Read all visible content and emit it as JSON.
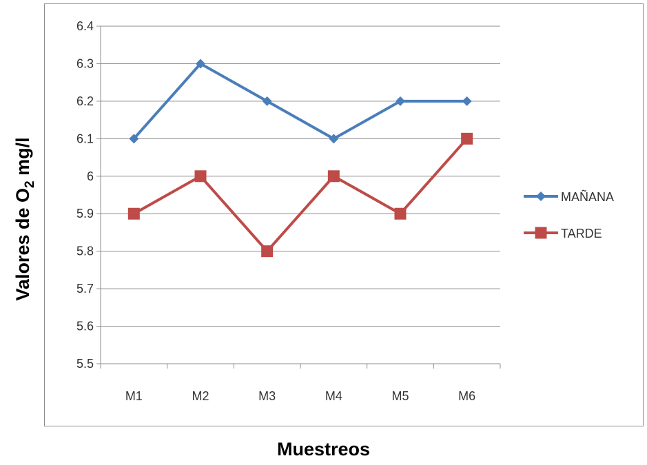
{
  "chart_data": {
    "type": "line",
    "categories": [
      "M1",
      "M2",
      "M3",
      "M4",
      "M5",
      "M6"
    ],
    "series": [
      {
        "name": "MAÑANA",
        "values": [
          6.1,
          6.3,
          6.2,
          6.1,
          6.2,
          6.2
        ],
        "color": "#4a7ebb",
        "marker": "diamond"
      },
      {
        "name": "TARDE",
        "values": [
          5.9,
          6.0,
          5.8,
          6.0,
          5.9,
          6.1
        ],
        "color": "#be4b48",
        "marker": "square"
      }
    ],
    "yticks": [
      "5.5",
      "5.6",
      "5.7",
      "5.8",
      "5.9",
      "6",
      "6.1",
      "6.2",
      "6.3",
      "6.4"
    ],
    "ylim": [
      5.5,
      6.4
    ],
    "grid": true,
    "legend": "right",
    "xlabel": "Muestreos",
    "ylabel_main": "Valores  de O",
    "ylabel_sub": "2",
    "ylabel_tail": " mg/l"
  }
}
